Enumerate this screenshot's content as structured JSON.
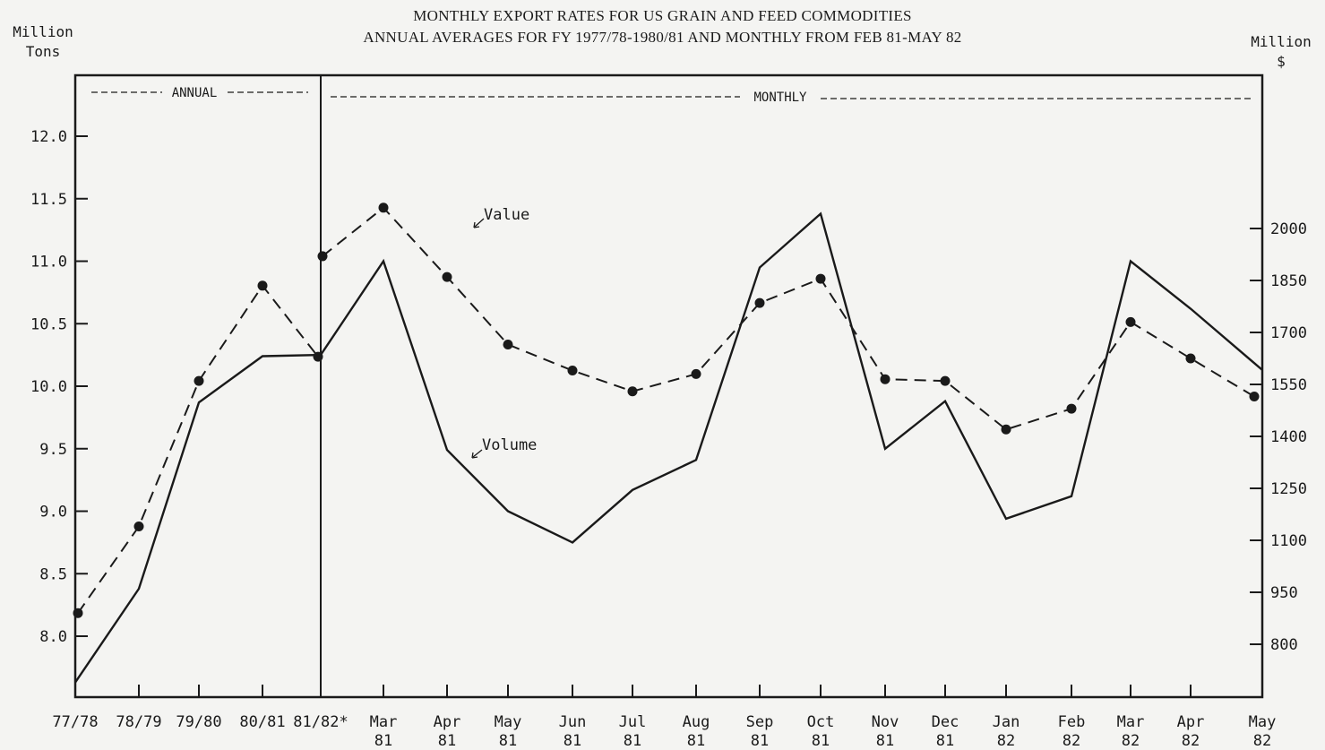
{
  "title_line1": "MONTHLY EXPORT RATES FOR US GRAIN AND FEED COMMODITIES",
  "title_line2": "ANNUAL AVERAGES FOR FY 1977/78-1980/81 AND MONTHLY FROM FEB 81-MAY 82",
  "left_axis_unit": [
    "Million",
    "Tons"
  ],
  "right_axis_unit": [
    "Million",
    "$"
  ],
  "section_labels": {
    "annual": "ANNUAL",
    "monthly": "MONTHLY"
  },
  "colors": {
    "ink": "#1a1a1a",
    "background": "#f4f4f2"
  },
  "chart_data": {
    "type": "line",
    "title": "MONTHLY EXPORT RATES FOR US GRAIN AND FEED COMMODITIES",
    "subtitle": "ANNUAL AVERAGES FOR FY 1977/78-1980/81 AND MONTHLY FROM FEB 81-MAY 82",
    "categories": [
      [
        "77/78",
        ""
      ],
      [
        "78/79",
        ""
      ],
      [
        "79/80",
        ""
      ],
      [
        "80/81",
        ""
      ],
      [
        "81/82*",
        ""
      ],
      [
        "Mar",
        "81"
      ],
      [
        "Apr",
        "81"
      ],
      [
        "May",
        "81"
      ],
      [
        "Jun",
        "81"
      ],
      [
        "Jul",
        "81"
      ],
      [
        "Aug",
        "81"
      ],
      [
        "Sep",
        "81"
      ],
      [
        "Oct",
        "81"
      ],
      [
        "Nov",
        "81"
      ],
      [
        "Dec",
        "81"
      ],
      [
        "Jan",
        "82"
      ],
      [
        "Feb",
        "82"
      ],
      [
        "Mar",
        "82"
      ],
      [
        "Apr",
        "82"
      ],
      [
        "May",
        "82"
      ]
    ],
    "left_axis": {
      "label": "Million Tons",
      "ticks": [
        8.0,
        8.5,
        9.0,
        9.5,
        10.0,
        10.5,
        11.0,
        11.5,
        12.0
      ],
      "tick_labels": [
        "8.0",
        "8.5",
        "9.0",
        "9.5",
        "10.0",
        "10.5",
        "11.0",
        "11.5",
        "12.0"
      ]
    },
    "right_axis": {
      "label": "Million $",
      "ticks": [
        800,
        950,
        1100,
        1250,
        1400,
        1550,
        1700,
        1850,
        2000
      ]
    },
    "series": [
      {
        "name": "Volume",
        "axis": "left",
        "style": "solid",
        "x_start": "77/78 (left edge)",
        "values": [
          7.63,
          8.38,
          9.87,
          10.24,
          10.25,
          11.0,
          9.49,
          9.0,
          8.75,
          9.17,
          9.41,
          10.95,
          11.38,
          9.5,
          9.88,
          8.94,
          9.12,
          11.0,
          10.62,
          10.13
        ]
      },
      {
        "name": "Value",
        "axis": "right",
        "style": "dashed",
        "markers": true,
        "values": [
          890,
          1140,
          1560,
          1835,
          1630,
          2060,
          1860,
          1665,
          1590,
          1530,
          1580,
          1785,
          1855,
          1565,
          1560,
          1420,
          1480,
          1730,
          1625,
          1515
        ],
        "value_at_81_82_line": 1920
      }
    ],
    "annotations": [
      {
        "text": "Value",
        "series": "Value",
        "near": "Apr 81 - May 81"
      },
      {
        "text": "Volume",
        "series": "Volume",
        "near": "Apr 81 - May 81"
      }
    ],
    "grid": false,
    "divider_after": "81/82*"
  }
}
